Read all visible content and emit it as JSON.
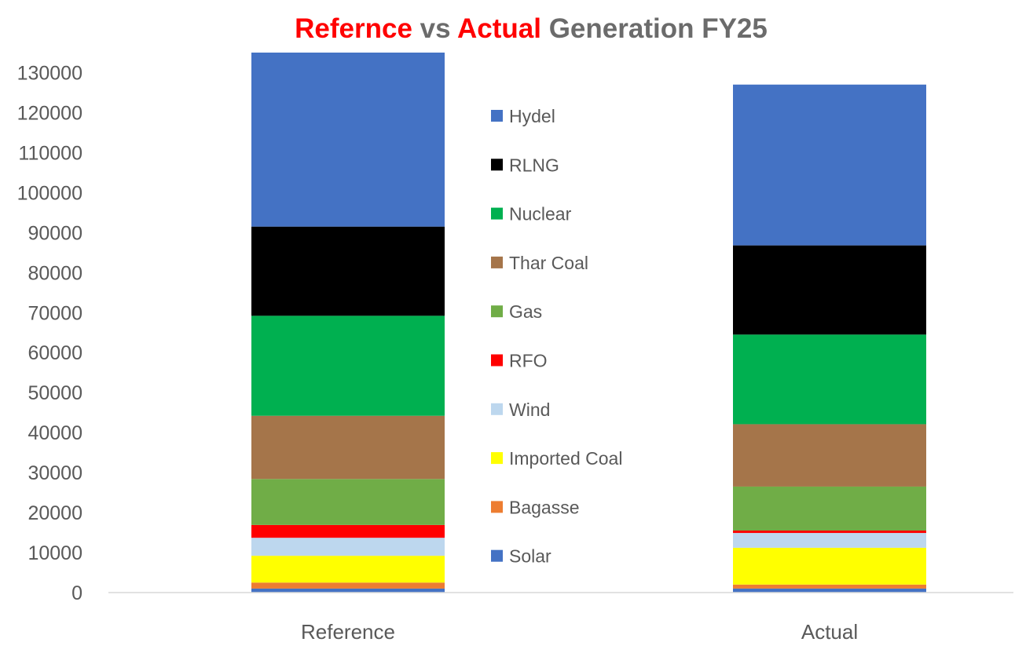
{
  "chart_data": {
    "type": "bar",
    "stacked": true,
    "title": "Refernce vs Actual Generation FY25",
    "title_parts": [
      {
        "text": "Refernce",
        "color": "#ff0000"
      },
      {
        "text": " vs ",
        "color": "#6b6b6b"
      },
      {
        "text": "Actual",
        "color": "#ff0000"
      },
      {
        "text": " Generation FY25",
        "color": "#6b6b6b"
      }
    ],
    "categories": [
      "Reference",
      "Actual"
    ],
    "ylim": [
      0,
      135000
    ],
    "yticks": [
      0,
      10000,
      20000,
      30000,
      40000,
      50000,
      60000,
      70000,
      80000,
      90000,
      100000,
      110000,
      120000,
      130000
    ],
    "grid": false,
    "legend_position": "center",
    "series": [
      {
        "name": "Solar",
        "color": "#4472c4",
        "values": [
          1000,
          1000
        ]
      },
      {
        "name": "Bagasse",
        "color": "#ed7d31",
        "values": [
          1500,
          1000
        ]
      },
      {
        "name": "Imported Coal",
        "color": "#ffff00",
        "values": [
          6700,
          9200
        ]
      },
      {
        "name": "Wind",
        "color": "#bdd7ee",
        "values": [
          4500,
          3700
        ]
      },
      {
        "name": "RFO",
        "color": "#ff0000",
        "values": [
          3200,
          600
        ]
      },
      {
        "name": "Gas",
        "color": "#70ad47",
        "values": [
          11500,
          11000
        ]
      },
      {
        "name": "Thar Coal",
        "color": "#a5754a",
        "values": [
          15800,
          15600
        ]
      },
      {
        "name": "Nuclear",
        "color": "#00b050",
        "values": [
          25000,
          22400
        ]
      },
      {
        "name": "RLNG",
        "color": "#000000",
        "values": [
          22300,
          22300
        ]
      },
      {
        "name": "Hydel",
        "color": "#4472c4",
        "values": [
          43500,
          40200
        ]
      }
    ]
  }
}
